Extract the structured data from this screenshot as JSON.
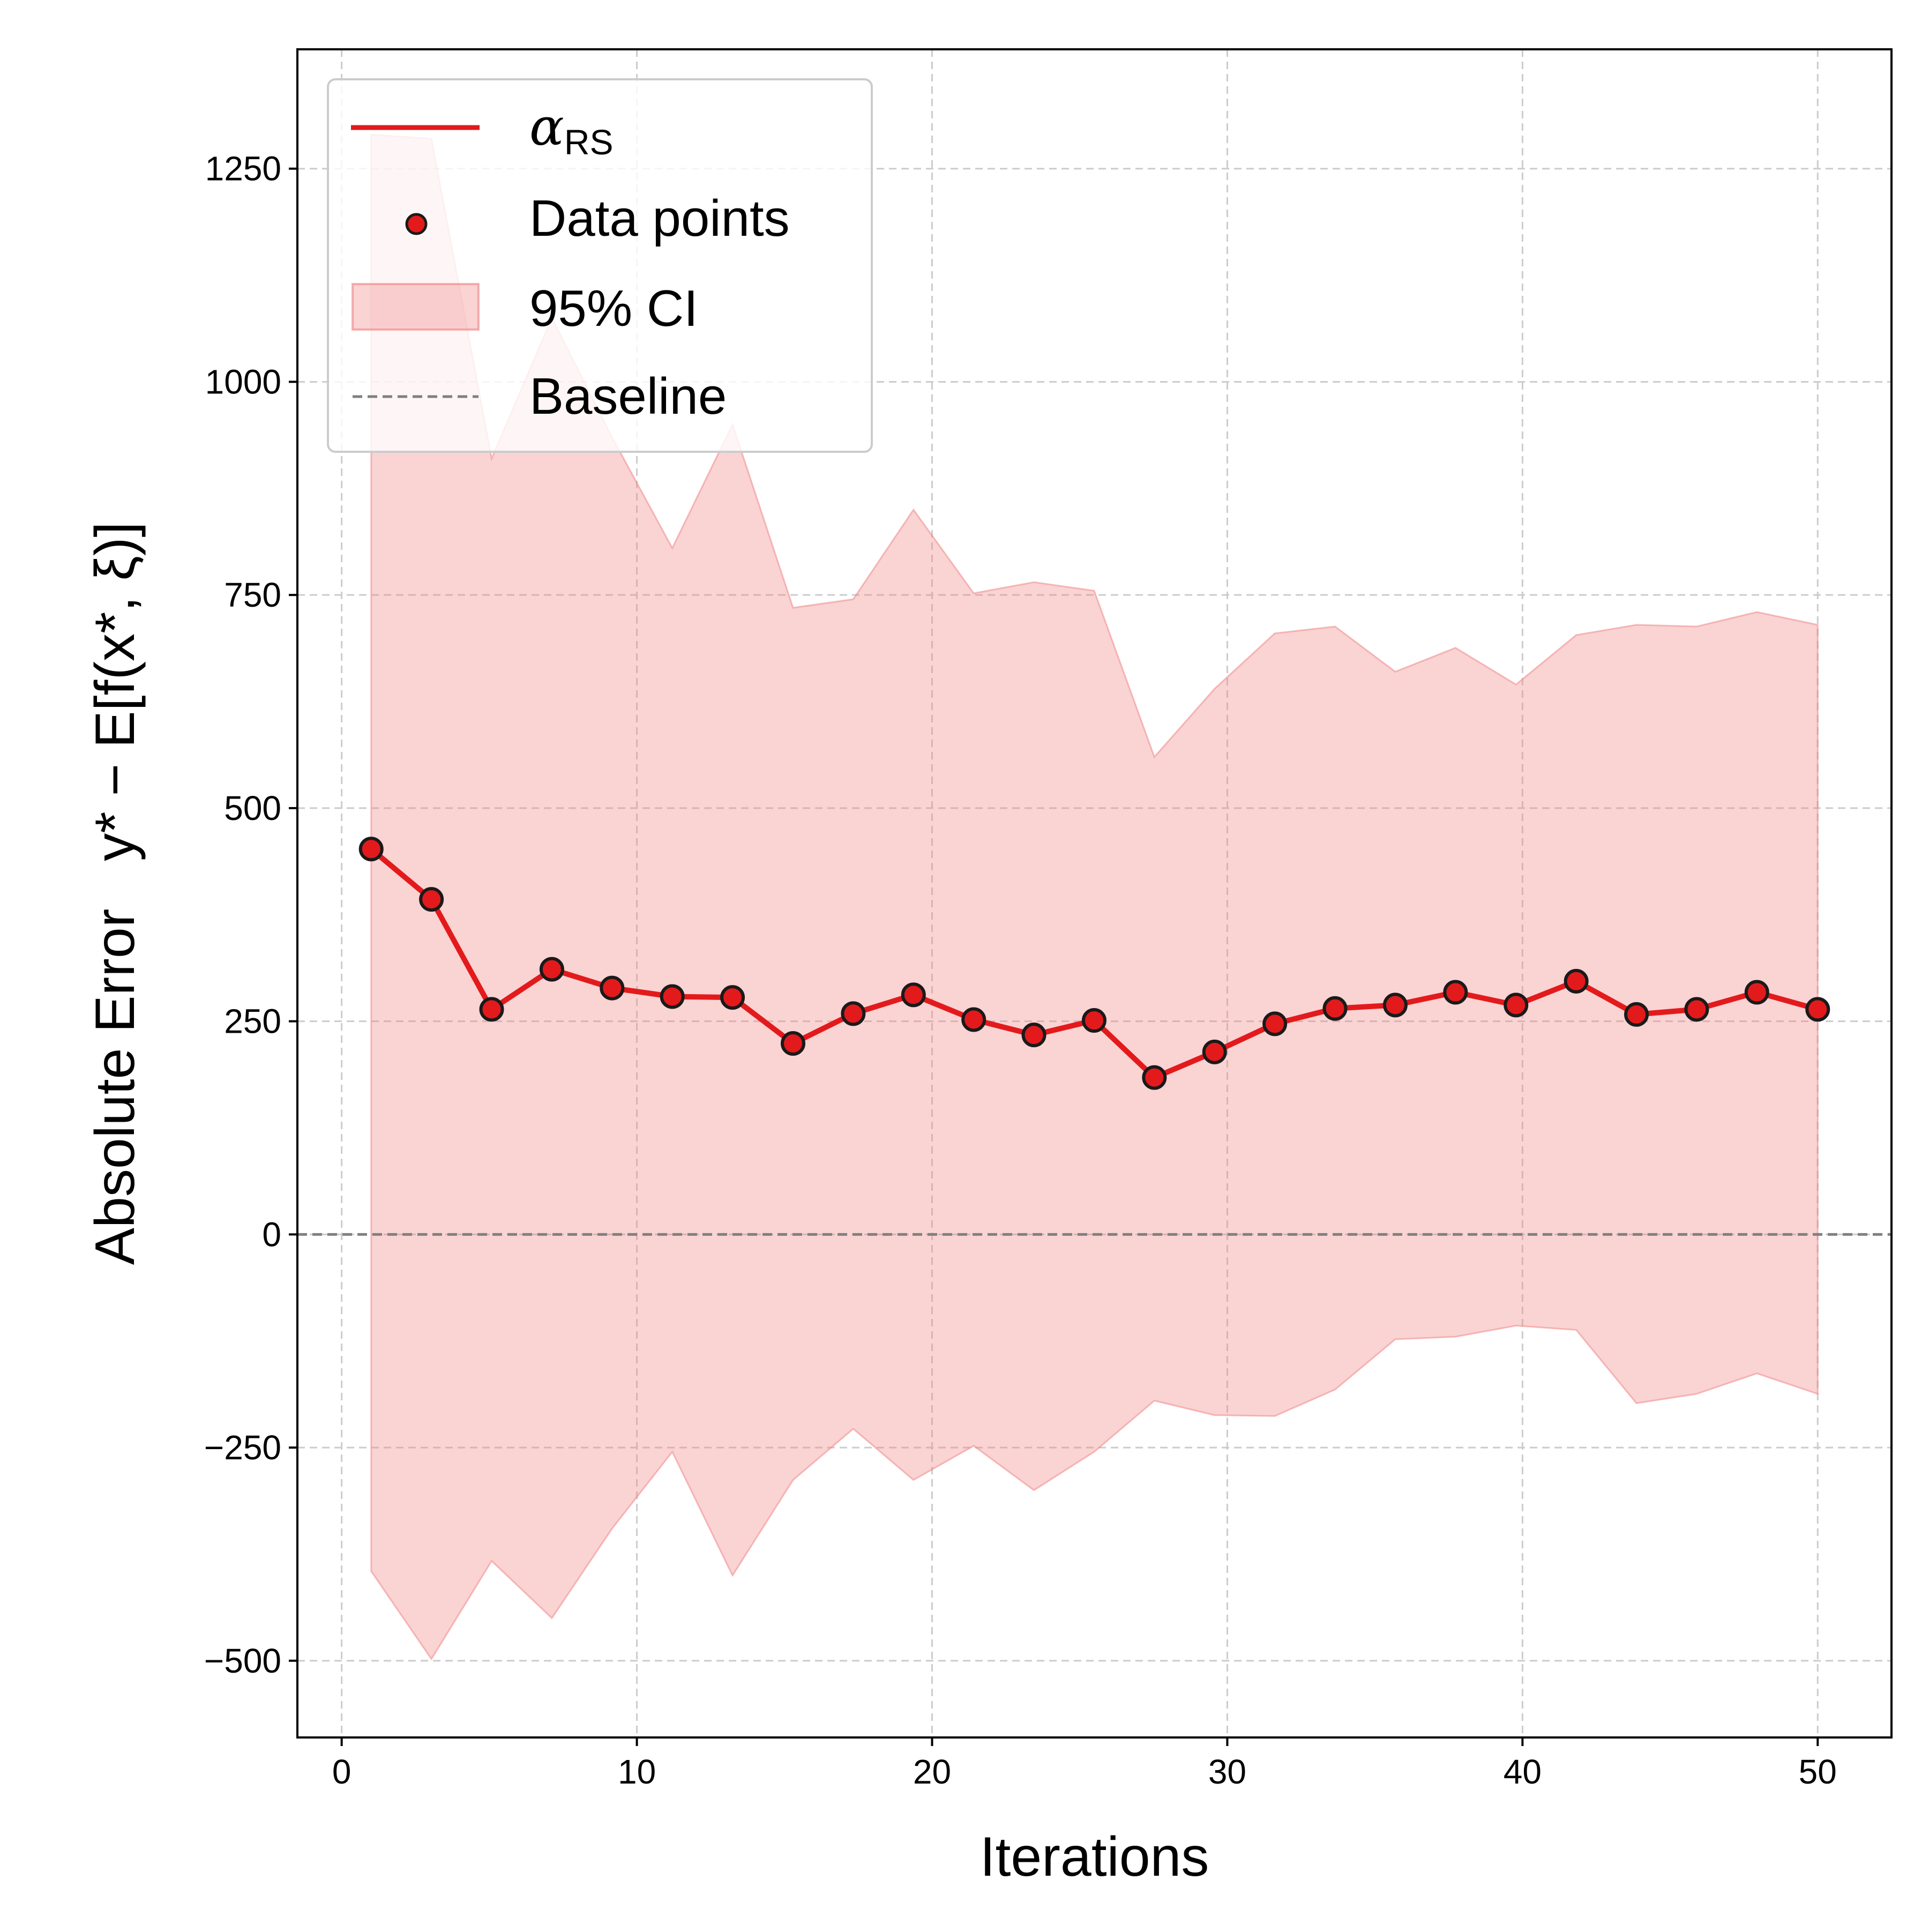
{
  "chart_data": {
    "type": "line",
    "xlabel": "Iterations",
    "ylabel": {
      "prefix": "Absolute Error",
      "formula": "y* − E[f(x*, ξ)]"
    },
    "xlim": [
      -1.5,
      52.5
    ],
    "ylim": [
      -590,
      1390
    ],
    "xticks": [
      0,
      10,
      20,
      30,
      40,
      50
    ],
    "yticks": [
      -500,
      -250,
      0,
      250,
      500,
      750,
      1000,
      1250
    ],
    "ytick_labels": [
      "−500",
      "−250",
      "0",
      "250",
      "500",
      "750",
      "1000",
      "1250"
    ],
    "grid": true,
    "legend_position": "upper left",
    "legend": {
      "line": "α",
      "line_subscript": "RS",
      "points": "Data points",
      "band": "95% CI",
      "baseline": "Baseline"
    },
    "colors": {
      "line": "#e31a1c",
      "marker_edge": "#1a1a1a",
      "band_fill": "#f08080",
      "baseline": "#808080",
      "grid": "#cccccc"
    },
    "x": [
      1,
      3.04,
      5.08,
      7.12,
      9.16,
      11.2,
      13.24,
      15.29,
      17.33,
      19.37,
      21.41,
      23.45,
      25.49,
      27.53,
      29.57,
      31.61,
      33.65,
      35.69,
      37.73,
      39.78,
      41.82,
      43.86,
      45.9,
      47.94,
      50
    ],
    "series": [
      {
        "values": [
          452,
          393,
          264,
          311,
          289,
          279,
          278,
          224,
          259,
          281,
          252,
          234,
          251,
          184,
          214,
          247,
          265,
          269,
          284,
          269,
          297,
          258,
          264,
          284,
          264
        ]
      }
    ],
    "ci_upper": [
      1290,
      1285,
      910,
      1075,
      935,
      805,
      950,
      735,
      745,
      850,
      752,
      765,
      755,
      560,
      640,
      705,
      713,
      660,
      688,
      645,
      703,
      715,
      713,
      730,
      715
    ],
    "ci_lower": [
      -395,
      -498,
      -383,
      -450,
      -345,
      -255,
      -400,
      -288,
      -228,
      -288,
      -248,
      -300,
      -255,
      -195,
      -212,
      -213,
      -182,
      -123,
      -120,
      -107,
      -112,
      -198,
      -187,
      -163,
      -187
    ],
    "baseline": 0
  }
}
